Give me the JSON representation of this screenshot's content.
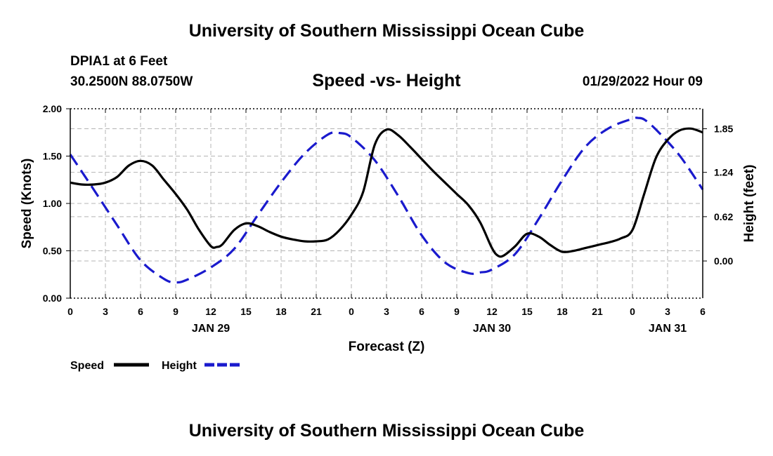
{
  "header": {
    "main_title": "University of Southern Mississippi Ocean Cube",
    "station": "DPIA1 at 6 Feet",
    "coords": "30.2500N  88.0750W",
    "timestamp": "01/29/2022 Hour 09"
  },
  "footer": {
    "title": "University of Southern Mississippi Ocean Cube"
  },
  "chart_data": {
    "type": "line",
    "title": "Speed -vs- Height",
    "xlabel": "Forecast (Z)",
    "ylabel_left": "Speed (Knots)",
    "ylabel_right": "Height (feet)",
    "x_unit": "hours since 01/29/2022 00Z",
    "xlim": [
      0,
      54
    ],
    "ylim_left": [
      0,
      2.0
    ],
    "ylim_right": [
      -0.52,
      2.13
    ],
    "grid": true,
    "x_ticks": [
      {
        "hour": 0,
        "label": "0"
      },
      {
        "hour": 3,
        "label": "3"
      },
      {
        "hour": 6,
        "label": "6"
      },
      {
        "hour": 9,
        "label": "9"
      },
      {
        "hour": 12,
        "label": "12"
      },
      {
        "hour": 15,
        "label": "15"
      },
      {
        "hour": 18,
        "label": "18"
      },
      {
        "hour": 21,
        "label": "21"
      },
      {
        "hour": 24,
        "label": "0"
      },
      {
        "hour": 27,
        "label": "3"
      },
      {
        "hour": 30,
        "label": "6"
      },
      {
        "hour": 33,
        "label": "9"
      },
      {
        "hour": 36,
        "label": "12"
      },
      {
        "hour": 39,
        "label": "15"
      },
      {
        "hour": 42,
        "label": "18"
      },
      {
        "hour": 45,
        "label": "21"
      },
      {
        "hour": 48,
        "label": "0"
      },
      {
        "hour": 51,
        "label": "3"
      },
      {
        "hour": 54,
        "label": "6"
      }
    ],
    "date_labels": [
      {
        "hour": 12,
        "label": "JAN 29"
      },
      {
        "hour": 36,
        "label": "JAN 30"
      },
      {
        "hour": 51,
        "label": "JAN 31"
      }
    ],
    "y_ticks_left": [
      {
        "value": 0,
        "label": "0.00"
      },
      {
        "value": 0.5,
        "label": "0.50"
      },
      {
        "value": 1.0,
        "label": "1.00"
      },
      {
        "value": 1.5,
        "label": "1.50"
      },
      {
        "value": 2.0,
        "label": "2.00"
      }
    ],
    "y_ticks_right": [
      {
        "value": 0.0,
        "label": "0.00"
      },
      {
        "value": 0.62,
        "label": "0.62"
      },
      {
        "value": 1.24,
        "label": "1.24"
      },
      {
        "value": 1.85,
        "label": "1.85"
      }
    ],
    "series": [
      {
        "name": "Speed",
        "axis": "left",
        "color": "#000000",
        "dash": "solid",
        "x": [
          0,
          1,
          2,
          3,
          4,
          5,
          6,
          7,
          8,
          9,
          10,
          11,
          12,
          12.5,
          13,
          14,
          15,
          16,
          17,
          18,
          19,
          20,
          21,
          22,
          23,
          24,
          25,
          26,
          27,
          28,
          29,
          30,
          31,
          32,
          33,
          34,
          35,
          36,
          36.5,
          37,
          38,
          39,
          40,
          41,
          42,
          43,
          44,
          45,
          46,
          47,
          48,
          49,
          50,
          51,
          52,
          53,
          54
        ],
        "y": [
          1.22,
          1.2,
          1.2,
          1.22,
          1.28,
          1.4,
          1.45,
          1.4,
          1.25,
          1.1,
          0.93,
          0.72,
          0.55,
          0.54,
          0.57,
          0.72,
          0.79,
          0.76,
          0.7,
          0.65,
          0.62,
          0.6,
          0.6,
          0.62,
          0.72,
          0.88,
          1.12,
          1.62,
          1.78,
          1.72,
          1.6,
          1.47,
          1.34,
          1.22,
          1.1,
          0.98,
          0.8,
          0.53,
          0.45,
          0.45,
          0.55,
          0.68,
          0.65,
          0.56,
          0.49,
          0.5,
          0.53,
          0.56,
          0.59,
          0.63,
          0.72,
          1.1,
          1.48,
          1.67,
          1.77,
          1.79,
          1.75
        ]
      },
      {
        "name": "Height",
        "axis": "right",
        "color": "#1a1acd",
        "dash": "dashed",
        "x": [
          0,
          2,
          4,
          6,
          8,
          9,
          10,
          12,
          14,
          16,
          18,
          20,
          22,
          23,
          24,
          26,
          28,
          30,
          32,
          34,
          35,
          36,
          38,
          40,
          42,
          44,
          46,
          48,
          48.5,
          49,
          50,
          52,
          54
        ],
        "y": [
          1.49,
          1.0,
          0.5,
          0.01,
          -0.25,
          -0.3,
          -0.26,
          -0.09,
          0.17,
          0.64,
          1.1,
          1.5,
          1.77,
          1.79,
          1.73,
          1.41,
          0.91,
          0.36,
          -0.02,
          -0.17,
          -0.16,
          -0.12,
          0.1,
          0.59,
          1.13,
          1.6,
          1.86,
          1.99,
          2.0,
          1.98,
          1.84,
          1.48,
          1.0
        ]
      }
    ]
  },
  "legend": {
    "speed_label": "Speed",
    "height_label": "Height",
    "speed_color": "#000000",
    "height_color": "#1a1acd"
  }
}
